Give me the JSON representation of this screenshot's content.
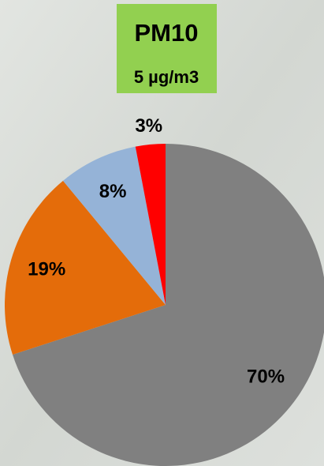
{
  "chart_data": {
    "type": "pie",
    "title": "PM10",
    "subtitle": "5 µg/m3",
    "values": [
      70,
      19,
      8,
      3
    ],
    "value_labels": [
      "70%",
      "19%",
      "8%",
      "3%"
    ],
    "colors": [
      "#808080",
      "#e46c0a",
      "#95b3d7",
      "#ff0000"
    ]
  }
}
